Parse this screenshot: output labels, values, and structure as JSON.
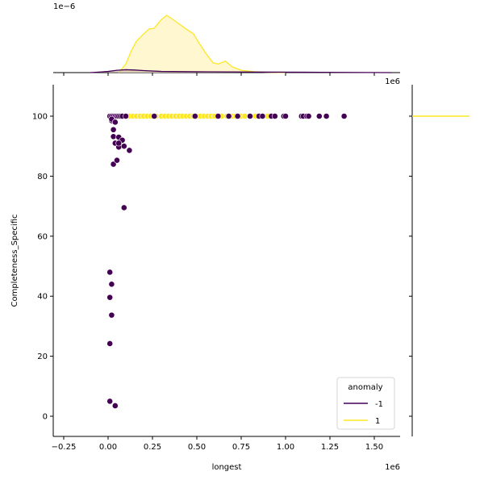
{
  "chart_data": {
    "type": "scatter",
    "subtype": "jointplot",
    "title": "",
    "xlabel": "longest",
    "ylabel": "Completeness_Specific",
    "x_offset_text": "1e6",
    "top_marginal_offset_text": "1e−6",
    "xlim": [
      -0.3,
      1.66
    ],
    "ylim": [
      -7,
      110
    ],
    "x_ticks": [
      -0.25,
      0.0,
      0.25,
      0.5,
      0.75,
      1.0,
      1.25,
      1.5
    ],
    "x_tick_labels": [
      "−0.25",
      "0.00",
      "0.25",
      "0.50",
      "0.75",
      "1.00",
      "1.25",
      "1.50"
    ],
    "y_ticks": [
      0,
      20,
      40,
      60,
      80,
      100
    ],
    "y_tick_labels": [
      "0",
      "20",
      "40",
      "60",
      "80",
      "100"
    ],
    "grid": false,
    "legend": {
      "title": "anomaly",
      "position": "lower right",
      "entries": [
        {
          "label": "-1",
          "color": "#440154"
        },
        {
          "label": "1",
          "color": "#fde725"
        }
      ]
    },
    "series": [
      {
        "name": "-1",
        "color": "#440154",
        "points_x_1e6": [
          0.01,
          0.02,
          0.03,
          0.04,
          0.05,
          0.06,
          0.07,
          0.08,
          0.1,
          0.26,
          0.49,
          0.62,
          0.68,
          0.73,
          0.8,
          0.85,
          0.87,
          0.92,
          0.94,
          0.99,
          1.0,
          1.09,
          1.1,
          1.12,
          1.13,
          1.19,
          1.23,
          1.33,
          0.02,
          0.02,
          0.03,
          0.04,
          0.03,
          0.04,
          0.06,
          0.06,
          0.08,
          0.09,
          0.06,
          0.12,
          0.03,
          0.05,
          0.09,
          0.01,
          0.02,
          0.01,
          0.02,
          0.01,
          0.01,
          0.04
        ],
        "points_y": [
          100,
          100,
          100,
          100,
          100,
          100,
          100,
          100,
          100,
          100,
          100,
          100,
          100,
          100,
          100,
          100,
          100,
          100,
          100,
          100,
          100,
          100,
          100,
          100,
          100,
          100,
          100,
          100,
          98.5,
          99.0,
          95.5,
          98.0,
          93.2,
          91.0,
          93.0,
          89.7,
          92.0,
          90.0,
          91.0,
          88.6,
          84.0,
          85.3,
          69.5,
          48.0,
          44.0,
          39.6,
          33.7,
          24.2,
          5.0,
          3.5
        ]
      },
      {
        "name": "1",
        "color": "#fde725",
        "points_x_1e6": [
          0.1,
          0.12,
          0.14,
          0.16,
          0.18,
          0.2,
          0.22,
          0.24,
          0.27,
          0.3,
          0.32,
          0.34,
          0.36,
          0.38,
          0.4,
          0.42,
          0.44,
          0.46,
          0.48,
          0.5,
          0.52,
          0.54,
          0.56,
          0.58,
          0.6,
          0.64,
          0.67,
          0.7,
          0.72,
          0.75,
          0.77,
          0.83,
          0.9
        ],
        "points_y": [
          100,
          100,
          100,
          100,
          100,
          100,
          100,
          100,
          100,
          100,
          100,
          100,
          100,
          100,
          100,
          100,
          100,
          100,
          100,
          100,
          100,
          100,
          100,
          100,
          100,
          100,
          100,
          100,
          100,
          100,
          100,
          100,
          100
        ]
      }
    ],
    "top_marginal_kde": {
      "units": "density x 1e-6",
      "series": [
        {
          "name": "1",
          "color": "#fde725",
          "fill": "#fdf4c0",
          "x_1e6": [
            0.06,
            0.1,
            0.13,
            0.16,
            0.2,
            0.23,
            0.26,
            0.3,
            0.33,
            0.36,
            0.4,
            0.44,
            0.48,
            0.51,
            0.55,
            0.59,
            0.62,
            0.66,
            0.7,
            0.75,
            0.82,
            0.9,
            1.0
          ],
          "density": [
            0.0,
            0.3,
            0.75,
            1.1,
            1.35,
            1.52,
            1.55,
            1.85,
            2.0,
            1.88,
            1.7,
            1.52,
            1.36,
            1.06,
            0.68,
            0.35,
            0.3,
            0.4,
            0.2,
            0.08,
            0.03,
            0.01,
            0.0
          ]
        },
        {
          "name": "-1",
          "color": "#440154",
          "fill": "#c9b7a6",
          "x_1e6": [
            -0.1,
            0.0,
            0.05,
            0.1,
            0.15,
            0.2,
            0.3,
            0.5,
            0.8,
            1.2,
            1.6
          ],
          "density": [
            0.0,
            0.04,
            0.08,
            0.1,
            0.09,
            0.07,
            0.04,
            0.03,
            0.02,
            0.01,
            0.0
          ]
        }
      ]
    },
    "right_marginal_kde": {
      "series": [
        {
          "name": "1",
          "color": "#fde725",
          "y": 100,
          "note": "degenerate KDE drawn as horizontal line at y=100"
        }
      ]
    }
  }
}
